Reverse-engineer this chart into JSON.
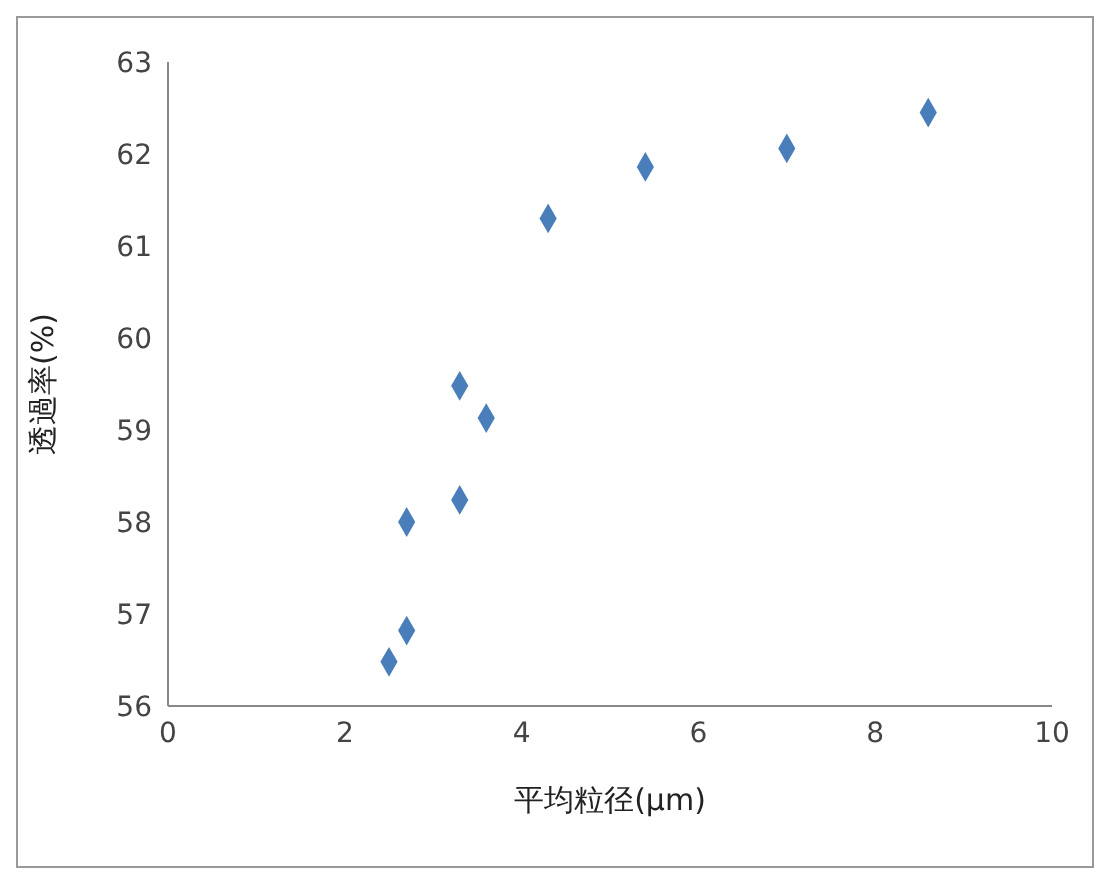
{
  "chart_data": {
    "type": "scatter",
    "xlabel": "平均粒径(μm)",
    "ylabel": "透過率(%)",
    "x": [
      2.5,
      2.7,
      2.7,
      3.3,
      3.3,
      3.6,
      4.3,
      5.4,
      7.0,
      8.6
    ],
    "values": [
      56.48,
      56.82,
      58.0,
      58.24,
      59.48,
      59.13,
      61.3,
      61.86,
      62.06,
      62.45
    ],
    "color": "#4a7ebb",
    "marker": "diamond",
    "grid": false,
    "legend": false,
    "xlim": [
      0,
      10
    ],
    "xticks": [
      0,
      2,
      4,
      6,
      8,
      10
    ],
    "ylim": [
      56,
      63
    ],
    "yticks": [
      56,
      57,
      58,
      59,
      60,
      61,
      62,
      63
    ]
  }
}
